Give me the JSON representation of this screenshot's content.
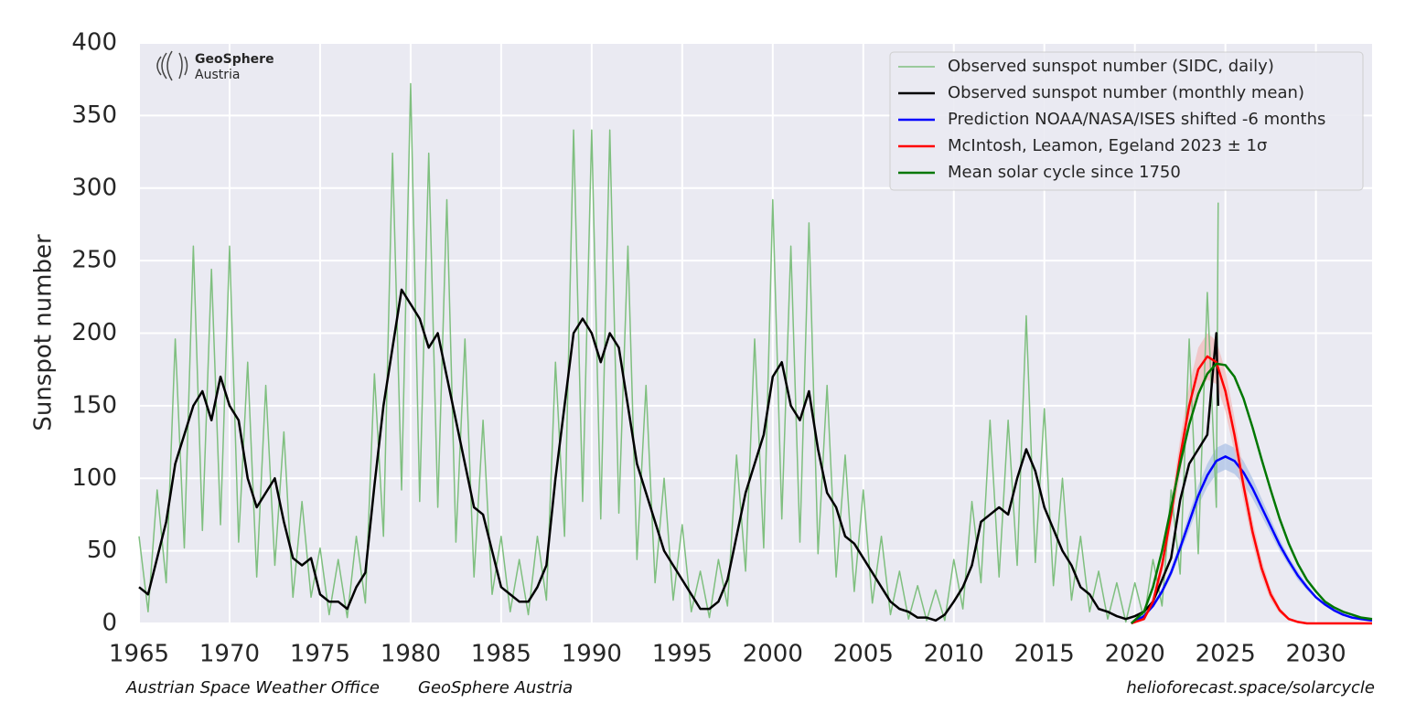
{
  "chart_data": {
    "type": "line",
    "y_label": "Sunspot number",
    "logo": [
      "GeoSphere",
      "Austria"
    ],
    "footer": [
      "Austrian Space Weather Office",
      "GeoSphere Austria",
      "helioforecast.space/solarcycle"
    ],
    "xlim": [
      1965,
      2033.1
    ],
    "ylim": [
      0,
      400
    ],
    "xticks": [
      1965,
      1970,
      1975,
      1980,
      1985,
      1990,
      1995,
      2000,
      2005,
      2010,
      2015,
      2020,
      2025,
      2030
    ],
    "yticks": [
      0,
      50,
      100,
      150,
      200,
      250,
      300,
      350,
      400
    ],
    "grid": true,
    "legend": "upper right",
    "background": "#eaeaf2",
    "series": [
      {
        "name": "Observed sunspot number (SIDC, daily)",
        "color": "#7fbf7f",
        "x": [
          1965,
          1965.5,
          1966,
          1966.5,
          1967,
          1967.5,
          1968,
          1968.5,
          1969,
          1969.5,
          1970,
          1970.5,
          1971,
          1971.5,
          1972,
          1972.5,
          1973,
          1973.5,
          1974,
          1974.5,
          1975,
          1975.5,
          1976,
          1976.5,
          1977,
          1977.5,
          1978,
          1978.5,
          1979,
          1979.5,
          1980,
          1980.5,
          1981,
          1981.5,
          1982,
          1982.5,
          1983,
          1983.5,
          1984,
          1984.5,
          1985,
          1985.5,
          1986,
          1986.5,
          1987,
          1987.5,
          1988,
          1988.5,
          1989,
          1989.5,
          1990,
          1990.5,
          1991,
          1991.5,
          1992,
          1992.5,
          1993,
          1993.5,
          1994,
          1994.5,
          1995,
          1995.5,
          1996,
          1996.5,
          1997,
          1997.5,
          1998,
          1998.5,
          1999,
          1999.5,
          2000,
          2000.5,
          2001,
          2001.5,
          2002,
          2002.5,
          2003,
          2003.5,
          2004,
          2004.5,
          2005,
          2005.5,
          2006,
          2006.5,
          2007,
          2007.5,
          2008,
          2008.5,
          2009,
          2009.5,
          2010,
          2010.5,
          2011,
          2011.5,
          2012,
          2012.5,
          2013,
          2013.5,
          2014,
          2014.5,
          2015,
          2015.5,
          2016,
          2016.5,
          2017,
          2017.5,
          2018,
          2018.5,
          2019,
          2019.5,
          2020,
          2020.5,
          2021,
          2021.5,
          2022,
          2022.5,
          2023,
          2023.5,
          2024,
          2024.5,
          2024.6
        ],
        "values": [
          60,
          8,
          92,
          28,
          196,
          52,
          260,
          64,
          244,
          68,
          260,
          56,
          180,
          32,
          164,
          40,
          132,
          18,
          84,
          18,
          52,
          6,
          44,
          4,
          60,
          14,
          172,
          60,
          324,
          92,
          372,
          84,
          324,
          80,
          292,
          56,
          196,
          32,
          140,
          20,
          60,
          8,
          44,
          6,
          60,
          16,
          180,
          60,
          340,
          84,
          340,
          72,
          340,
          76,
          260,
          44,
          164,
          28,
          100,
          16,
          68,
          8,
          36,
          4,
          44,
          12,
          116,
          36,
          196,
          52,
          292,
          72,
          260,
          56,
          276,
          48,
          164,
          32,
          116,
          22,
          92,
          14,
          60,
          6,
          36,
          3,
          26,
          2,
          23,
          2,
          44,
          10,
          84,
          28,
          140,
          32,
          140,
          40,
          212,
          42,
          148,
          26,
          100,
          16,
          60,
          8,
          36,
          3,
          28,
          1,
          28,
          3,
          44,
          12,
          92,
          34,
          196,
          48,
          228,
          80,
          290
        ]
      },
      {
        "name": "Observed sunspot number (monthly mean)",
        "color": "#000000",
        "x": [
          1965,
          1965.5,
          1966,
          1966.5,
          1967,
          1967.5,
          1968,
          1968.5,
          1969,
          1969.5,
          1970,
          1970.5,
          1971,
          1971.5,
          1972,
          1972.5,
          1973,
          1973.5,
          1974,
          1974.5,
          1975,
          1975.5,
          1976,
          1976.5,
          1977,
          1977.5,
          1978,
          1978.5,
          1979,
          1979.5,
          1980,
          1980.5,
          1981,
          1981.5,
          1982,
          1982.5,
          1983,
          1983.5,
          1984,
          1984.5,
          1985,
          1985.5,
          1986,
          1986.5,
          1987,
          1987.5,
          1988,
          1988.5,
          1989,
          1989.5,
          1990,
          1990.5,
          1991,
          1991.5,
          1992,
          1992.5,
          1993,
          1993.5,
          1994,
          1994.5,
          1995,
          1995.5,
          1996,
          1996.5,
          1997,
          1997.5,
          1998,
          1998.5,
          1999,
          1999.5,
          2000,
          2000.5,
          2001,
          2001.5,
          2002,
          2002.5,
          2003,
          2003.5,
          2004,
          2004.5,
          2005,
          2005.5,
          2006,
          2006.5,
          2007,
          2007.5,
          2008,
          2008.5,
          2009,
          2009.5,
          2010,
          2010.5,
          2011,
          2011.5,
          2012,
          2012.5,
          2013,
          2013.5,
          2014,
          2014.5,
          2015,
          2015.5,
          2016,
          2016.5,
          2017,
          2017.5,
          2018,
          2018.5,
          2019,
          2019.5,
          2020,
          2020.5,
          2021,
          2021.5,
          2022,
          2022.5,
          2023,
          2023.5,
          2024,
          2024.5,
          2024.6
        ],
        "values": [
          25,
          20,
          45,
          70,
          110,
          130,
          150,
          160,
          140,
          170,
          150,
          140,
          100,
          80,
          90,
          100,
          70,
          45,
          40,
          45,
          20,
          15,
          15,
          10,
          25,
          35,
          95,
          150,
          190,
          230,
          220,
          210,
          190,
          200,
          170,
          140,
          110,
          80,
          75,
          50,
          25,
          20,
          15,
          15,
          25,
          40,
          100,
          150,
          200,
          210,
          200,
          180,
          200,
          190,
          150,
          110,
          90,
          70,
          50,
          40,
          30,
          20,
          10,
          10,
          15,
          30,
          60,
          90,
          110,
          130,
          170,
          180,
          150,
          140,
          160,
          120,
          90,
          80,
          60,
          55,
          45,
          35,
          25,
          15,
          10,
          8,
          4,
          4,
          2,
          6,
          15,
          25,
          40,
          70,
          75,
          80,
          75,
          100,
          120,
          105,
          80,
          65,
          50,
          40,
          25,
          20,
          10,
          8,
          5,
          3,
          5,
          8,
          15,
          30,
          45,
          85,
          110,
          120,
          130,
          200,
          150
        ]
      },
      {
        "name": "Prediction NOAA/NASA/ISES shifted -6 months",
        "color": "#0000ff",
        "x": [
          2019.8,
          2020.5,
          2021,
          2021.5,
          2022,
          2022.5,
          2023,
          2023.5,
          2024,
          2024.5,
          2025,
          2025.5,
          2026,
          2026.5,
          2027,
          2027.5,
          2028,
          2028.5,
          2029,
          2029.5,
          2030,
          2030.5,
          2031,
          2031.5,
          2032,
          2032.5,
          2033.1
        ],
        "values": [
          0,
          5,
          12,
          22,
          35,
          52,
          70,
          88,
          102,
          112,
          115,
          112,
          104,
          93,
          80,
          67,
          54,
          43,
          33,
          25,
          18,
          13,
          9,
          6,
          4,
          3,
          2
        ],
        "lower": [
          0,
          4,
          11,
          20,
          32,
          48,
          64,
          81,
          94,
          103,
          106,
          103,
          96,
          86,
          74,
          62,
          50,
          40,
          30,
          23,
          17,
          12,
          8,
          5,
          4,
          3,
          2
        ],
        "upper": [
          0,
          6,
          13,
          24,
          38,
          56,
          76,
          95,
          110,
          121,
          124,
          121,
          112,
          100,
          86,
          72,
          58,
          46,
          36,
          27,
          19,
          14,
          10,
          7,
          4,
          3,
          2
        ],
        "band_color": "#a8bfe6"
      },
      {
        "name": "McIntosh, Leamon, Egeland 2023 ± 1σ",
        "color": "#ff0000",
        "x": [
          2019.8,
          2020.5,
          2021,
          2021.5,
          2022,
          2022.5,
          2023,
          2023.5,
          2024,
          2024.5,
          2025,
          2025.5,
          2026,
          2026.5,
          2027,
          2027.5,
          2028,
          2028.5,
          2029,
          2029.5,
          2030,
          2030.5,
          2031,
          2031.5,
          2032,
          2032.5,
          2033.1
        ],
        "values": [
          0,
          3,
          15,
          40,
          75,
          115,
          150,
          175,
          184,
          180,
          160,
          130,
          95,
          63,
          38,
          20,
          9,
          3,
          1,
          0,
          0,
          0,
          0,
          0,
          0,
          0,
          0
        ],
        "lower": [
          0,
          2,
          12,
          34,
          66,
          103,
          136,
          160,
          168,
          165,
          146,
          118,
          85,
          55,
          32,
          16,
          7,
          2,
          1,
          0,
          0,
          0,
          0,
          0,
          0,
          0,
          0
        ],
        "upper": [
          0,
          4,
          18,
          46,
          84,
          127,
          164,
          190,
          200,
          195,
          174,
          142,
          105,
          71,
          44,
          24,
          11,
          4,
          1,
          0,
          0,
          0,
          0,
          0,
          0,
          0,
          0
        ],
        "band_color": "#f2b8b8"
      },
      {
        "name": "Mean solar cycle since 1750",
        "color": "#007700",
        "x": [
          2019.8,
          2020.5,
          2021,
          2021.5,
          2022,
          2022.5,
          2023,
          2023.5,
          2024,
          2024.5,
          2025,
          2025.5,
          2026,
          2026.5,
          2027,
          2027.5,
          2028,
          2028.5,
          2029,
          2029.5,
          2030,
          2030.5,
          2031,
          2031.5,
          2032,
          2032.5,
          2033.1
        ],
        "values": [
          0,
          8,
          25,
          50,
          80,
          110,
          137,
          158,
          172,
          179,
          178,
          170,
          155,
          135,
          113,
          92,
          72,
          55,
          41,
          30,
          22,
          15,
          11,
          8,
          6,
          4,
          3
        ]
      }
    ]
  }
}
